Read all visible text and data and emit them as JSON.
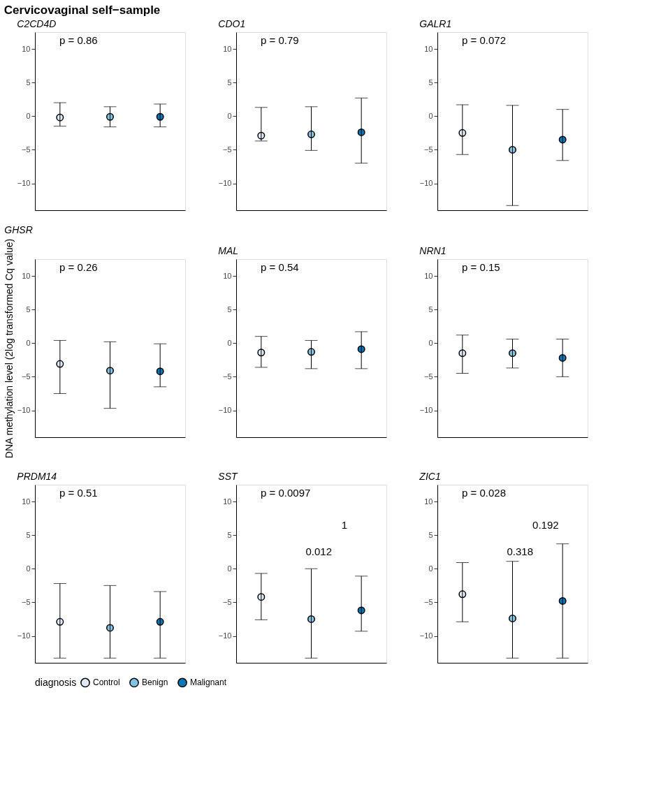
{
  "chart_data": [
    {
      "type": "scatter",
      "title": "C2CD4D",
      "annotations": [
        "Cervicovaginal self−sample",
        "p = 0.86"
      ],
      "categories": [
        null,
        null,
        null
      ],
      "ylim": [
        -14,
        12.5
      ],
      "yticks": [
        -10,
        -5,
        0,
        5,
        10
      ],
      "grid": false,
      "marker": "circle",
      "legend": "bottom",
      "legend_title": "diagnosis",
      "series": [
        {
          "name": "Control",
          "color": "#deebf7",
          "values": [
            -0.2,
            null,
            null
          ],
          "errors": [
            [
              -1.5,
              2.0
            ],
            null,
            null
          ]
        },
        {
          "name": "Benign",
          "color": "#7fc4e3",
          "values": [
            null,
            -0.1,
            null
          ],
          "errors": [
            null,
            [
              -1.6,
              1.4
            ],
            null
          ]
        },
        {
          "name": "Malignant",
          "color": "#0a78b8",
          "values": [
            null,
            null,
            -0.1
          ],
          "errors": [
            null,
            null,
            [
              -1.6,
              1.8
            ]
          ]
        }
      ]
    },
    {
      "type": "scatter",
      "title": "CDO1",
      "annotations": [
        "p = 0.79"
      ],
      "categories": [
        null,
        null,
        null
      ],
      "ylim": [
        -14,
        12.5
      ],
      "yticks": [
        -10,
        -5,
        0,
        5,
        10
      ],
      "grid": false,
      "marker": "circle",
      "series": [
        {
          "name": "Control",
          "color": "#deebf7",
          "values": [
            -2.9,
            null,
            null
          ],
          "errors": [
            [
              -3.7,
              1.3
            ],
            null,
            null
          ]
        },
        {
          "name": "Benign",
          "color": "#7fc4e3",
          "values": [
            null,
            -2.7,
            null
          ],
          "errors": [
            null,
            [
              -5.1,
              1.4
            ],
            null
          ]
        },
        {
          "name": "Malignant",
          "color": "#0a78b8",
          "values": [
            null,
            null,
            -2.4
          ],
          "errors": [
            null,
            null,
            [
              -7.0,
              2.7
            ]
          ]
        }
      ]
    },
    {
      "type": "scatter",
      "title": "GALR1",
      "annotations": [
        "p = 0.072"
      ],
      "categories": [
        null,
        null,
        null
      ],
      "ylim": [
        -14,
        12.5
      ],
      "yticks": [
        -10,
        -5,
        0,
        5,
        10
      ],
      "grid": false,
      "marker": "circle",
      "series": [
        {
          "name": "Control",
          "color": "#deebf7",
          "values": [
            -2.5,
            null,
            null
          ],
          "errors": [
            [
              -5.7,
              1.7
            ],
            null,
            null
          ]
        },
        {
          "name": "Benign",
          "color": "#7fc4e3",
          "values": [
            null,
            -5.0,
            null
          ],
          "errors": [
            null,
            [
              -13.3,
              1.6
            ],
            null
          ]
        },
        {
          "name": "Malignant",
          "color": "#0a78b8",
          "values": [
            null,
            null,
            -3.5
          ],
          "errors": [
            null,
            null,
            [
              -6.6,
              1.0
            ]
          ]
        }
      ]
    },
    {
      "type": "scatter",
      "title": "GHSR",
      "ylabel": "DNA methylation level (2log transformed Cq value)",
      "annotations": [
        "p = 0.26"
      ],
      "categories": [
        null,
        null,
        null
      ],
      "ylim": [
        -14,
        12.5
      ],
      "yticks": [
        -10,
        -5,
        0,
        5,
        10
      ],
      "grid": false,
      "marker": "circle",
      "series": [
        {
          "name": "Control",
          "color": "#deebf7",
          "values": [
            -3.1,
            null,
            null
          ],
          "errors": [
            [
              -7.5,
              0.4
            ],
            null,
            null
          ]
        },
        {
          "name": "Benign",
          "color": "#7fc4e3",
          "values": [
            null,
            -4.1,
            null
          ],
          "errors": [
            null,
            [
              -9.7,
              0.2
            ],
            null
          ]
        },
        {
          "name": "Malignant",
          "color": "#0a78b8",
          "values": [
            null,
            null,
            -4.2
          ],
          "errors": [
            null,
            null,
            [
              -6.5,
              -0.1
            ]
          ]
        }
      ]
    },
    {
      "type": "scatter",
      "title": "MAL",
      "annotations": [
        "p = 0.54"
      ],
      "categories": [
        null,
        null,
        null
      ],
      "ylim": [
        -14,
        12.5
      ],
      "yticks": [
        -10,
        -5,
        0,
        5,
        10
      ],
      "grid": false,
      "marker": "circle",
      "series": [
        {
          "name": "Control",
          "color": "#deebf7",
          "values": [
            -1.4,
            null,
            null
          ],
          "errors": [
            [
              -3.6,
              1.0
            ],
            null,
            null
          ]
        },
        {
          "name": "Benign",
          "color": "#7fc4e3",
          "values": [
            null,
            -1.3,
            null
          ],
          "errors": [
            null,
            [
              -3.8,
              0.4
            ],
            null
          ]
        },
        {
          "name": "Malignant",
          "color": "#0a78b8",
          "values": [
            null,
            null,
            -0.9
          ],
          "errors": [
            null,
            null,
            [
              -3.8,
              1.7
            ]
          ]
        }
      ]
    },
    {
      "type": "scatter",
      "title": "NRN1",
      "annotations": [
        "p = 0.15"
      ],
      "categories": [
        null,
        null,
        null
      ],
      "ylim": [
        -14,
        12.5
      ],
      "yticks": [
        -10,
        -5,
        0,
        5,
        10
      ],
      "grid": false,
      "marker": "circle",
      "series": [
        {
          "name": "Control",
          "color": "#deebf7",
          "values": [
            -1.5,
            null,
            null
          ],
          "errors": [
            [
              -4.5,
              1.2
            ],
            null,
            null
          ]
        },
        {
          "name": "Benign",
          "color": "#7fc4e3",
          "values": [
            null,
            -1.5,
            null
          ],
          "errors": [
            null,
            [
              -3.7,
              0.6
            ],
            null
          ]
        },
        {
          "name": "Malignant",
          "color": "#0a78b8",
          "values": [
            null,
            null,
            -2.2
          ],
          "errors": [
            null,
            null,
            [
              -5.0,
              0.6
            ]
          ]
        }
      ]
    },
    {
      "type": "scatter",
      "title": "PRDM14",
      "annotations": [
        "p = 0.51"
      ],
      "categories": [
        null,
        null,
        null
      ],
      "ylim": [
        -14,
        12.5
      ],
      "yticks": [
        -10,
        -5,
        0,
        5,
        10
      ],
      "grid": false,
      "marker": "circle",
      "series": [
        {
          "name": "Control",
          "color": "#deebf7",
          "values": [
            -7.9,
            null,
            null
          ],
          "errors": [
            [
              -13.3,
              -2.2
            ],
            null,
            null
          ]
        },
        {
          "name": "Benign",
          "color": "#7fc4e3",
          "values": [
            null,
            -8.8,
            null
          ],
          "errors": [
            null,
            [
              -13.3,
              -2.5
            ],
            null
          ]
        },
        {
          "name": "Malignant",
          "color": "#0a78b8",
          "values": [
            null,
            null,
            -7.9
          ],
          "errors": [
            null,
            null,
            [
              -13.3,
              -3.4
            ]
          ]
        }
      ]
    },
    {
      "type": "scatter",
      "title": "SST",
      "annotations": [
        "p = 0.0097",
        "1",
        "0.012"
      ],
      "categories": [
        null,
        null,
        null
      ],
      "ylim": [
        -14,
        12.5
      ],
      "yticks": [
        -10,
        -5,
        0,
        5,
        10
      ],
      "grid": false,
      "marker": "circle",
      "series": [
        {
          "name": "Control",
          "color": "#deebf7",
          "values": [
            -4.2,
            null,
            null
          ],
          "errors": [
            [
              -7.6,
              -0.7
            ],
            null,
            null
          ]
        },
        {
          "name": "Benign",
          "color": "#7fc4e3",
          "values": [
            null,
            -7.5,
            null
          ],
          "errors": [
            null,
            [
              -13.3,
              0.0
            ],
            null
          ]
        },
        {
          "name": "Malignant",
          "color": "#0a78b8",
          "values": [
            null,
            null,
            -6.2
          ],
          "errors": [
            null,
            null,
            [
              -9.3,
              -1.1
            ]
          ]
        }
      ]
    },
    {
      "type": "scatter",
      "title": "ZIC1",
      "annotations": [
        "p = 0.028",
        "0.192",
        "0.318"
      ],
      "categories": [
        null,
        null,
        null
      ],
      "ylim": [
        -14,
        12.5
      ],
      "yticks": [
        -10,
        -5,
        0,
        5,
        10
      ],
      "grid": false,
      "marker": "circle",
      "series": [
        {
          "name": "Control",
          "color": "#deebf7",
          "values": [
            -3.8,
            null,
            null
          ],
          "errors": [
            [
              -7.9,
              0.9
            ],
            null,
            null
          ]
        },
        {
          "name": "Benign",
          "color": "#7fc4e3",
          "values": [
            null,
            -7.4,
            null
          ],
          "errors": [
            null,
            [
              -13.3,
              1.1
            ],
            null
          ]
        },
        {
          "name": "Malignant",
          "color": "#0a78b8",
          "values": [
            null,
            null,
            -4.8
          ],
          "errors": [
            null,
            null,
            [
              -13.3,
              3.7
            ]
          ]
        }
      ]
    }
  ]
}
